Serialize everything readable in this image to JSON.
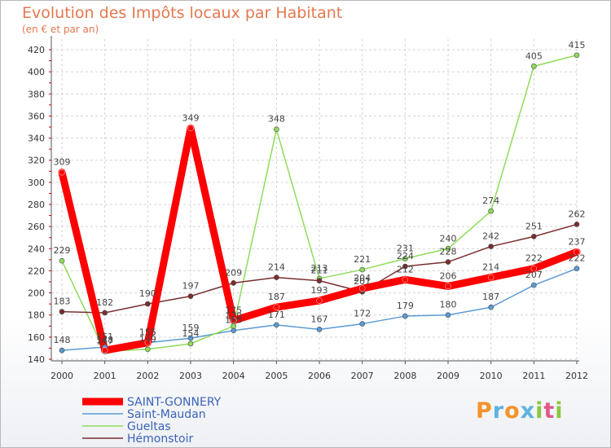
{
  "chart_data": {
    "type": "line",
    "title": "Evolution des Impôts locaux par Habitant",
    "subtitle": "(en € et par an)",
    "xlabel": "",
    "ylabel": "",
    "x": [
      "2000",
      "2001",
      "2002",
      "2003",
      "2004",
      "2005",
      "2006",
      "2007",
      "2008",
      "2009",
      "2010",
      "2011",
      "2012"
    ],
    "ylim": [
      140,
      420
    ],
    "yticks": [
      140,
      160,
      180,
      200,
      220,
      240,
      260,
      280,
      300,
      320,
      340,
      360,
      380,
      400,
      420
    ],
    "grid": true,
    "legend_position": "bottom-left",
    "series": [
      {
        "name": "SAINT-GONNERY",
        "color": "#ff0000",
        "values": [
          309,
          148,
          155,
          349,
          175,
          187,
          193,
          204,
          212,
          206,
          214,
          222,
          237
        ],
        "labels": [
          "309",
          "148",
          "155",
          "349",
          "175",
          "187",
          "193",
          "204",
          "212",
          "206",
          "214",
          "222",
          "237"
        ]
      },
      {
        "name": "Saint-Maudan",
        "color": "#5b9bd5",
        "values": [
          148,
          151,
          155,
          159,
          166,
          171,
          167,
          172,
          179,
          180,
          187,
          207,
          222
        ],
        "labels": [
          "148",
          "151",
          "155",
          "159",
          "166",
          "171",
          "167",
          "172",
          "179",
          "180",
          "187",
          "207",
          "222"
        ]
      },
      {
        "name": "Gueltas",
        "color": "#8fdc5a",
        "values": [
          229,
          147,
          149,
          154,
          170,
          348,
          213,
          221,
          231,
          240,
          274,
          405,
          415
        ],
        "labels": [
          "229",
          "147",
          "149",
          "154",
          "170",
          "348",
          "213",
          "221",
          "231",
          "240",
          "274",
          "405",
          "415"
        ]
      },
      {
        "name": "Hémonstoir",
        "color": "#7a2e2e",
        "values": [
          183,
          182,
          190,
          197,
          209,
          214,
          211,
          201,
          224,
          228,
          242,
          251,
          262
        ],
        "labels": [
          "183",
          "182",
          "190",
          "197",
          "209",
          "214",
          "211",
          "201",
          "224",
          "228",
          "242",
          "251",
          "262"
        ]
      }
    ]
  },
  "logo": {
    "text": "Proxiti"
  }
}
